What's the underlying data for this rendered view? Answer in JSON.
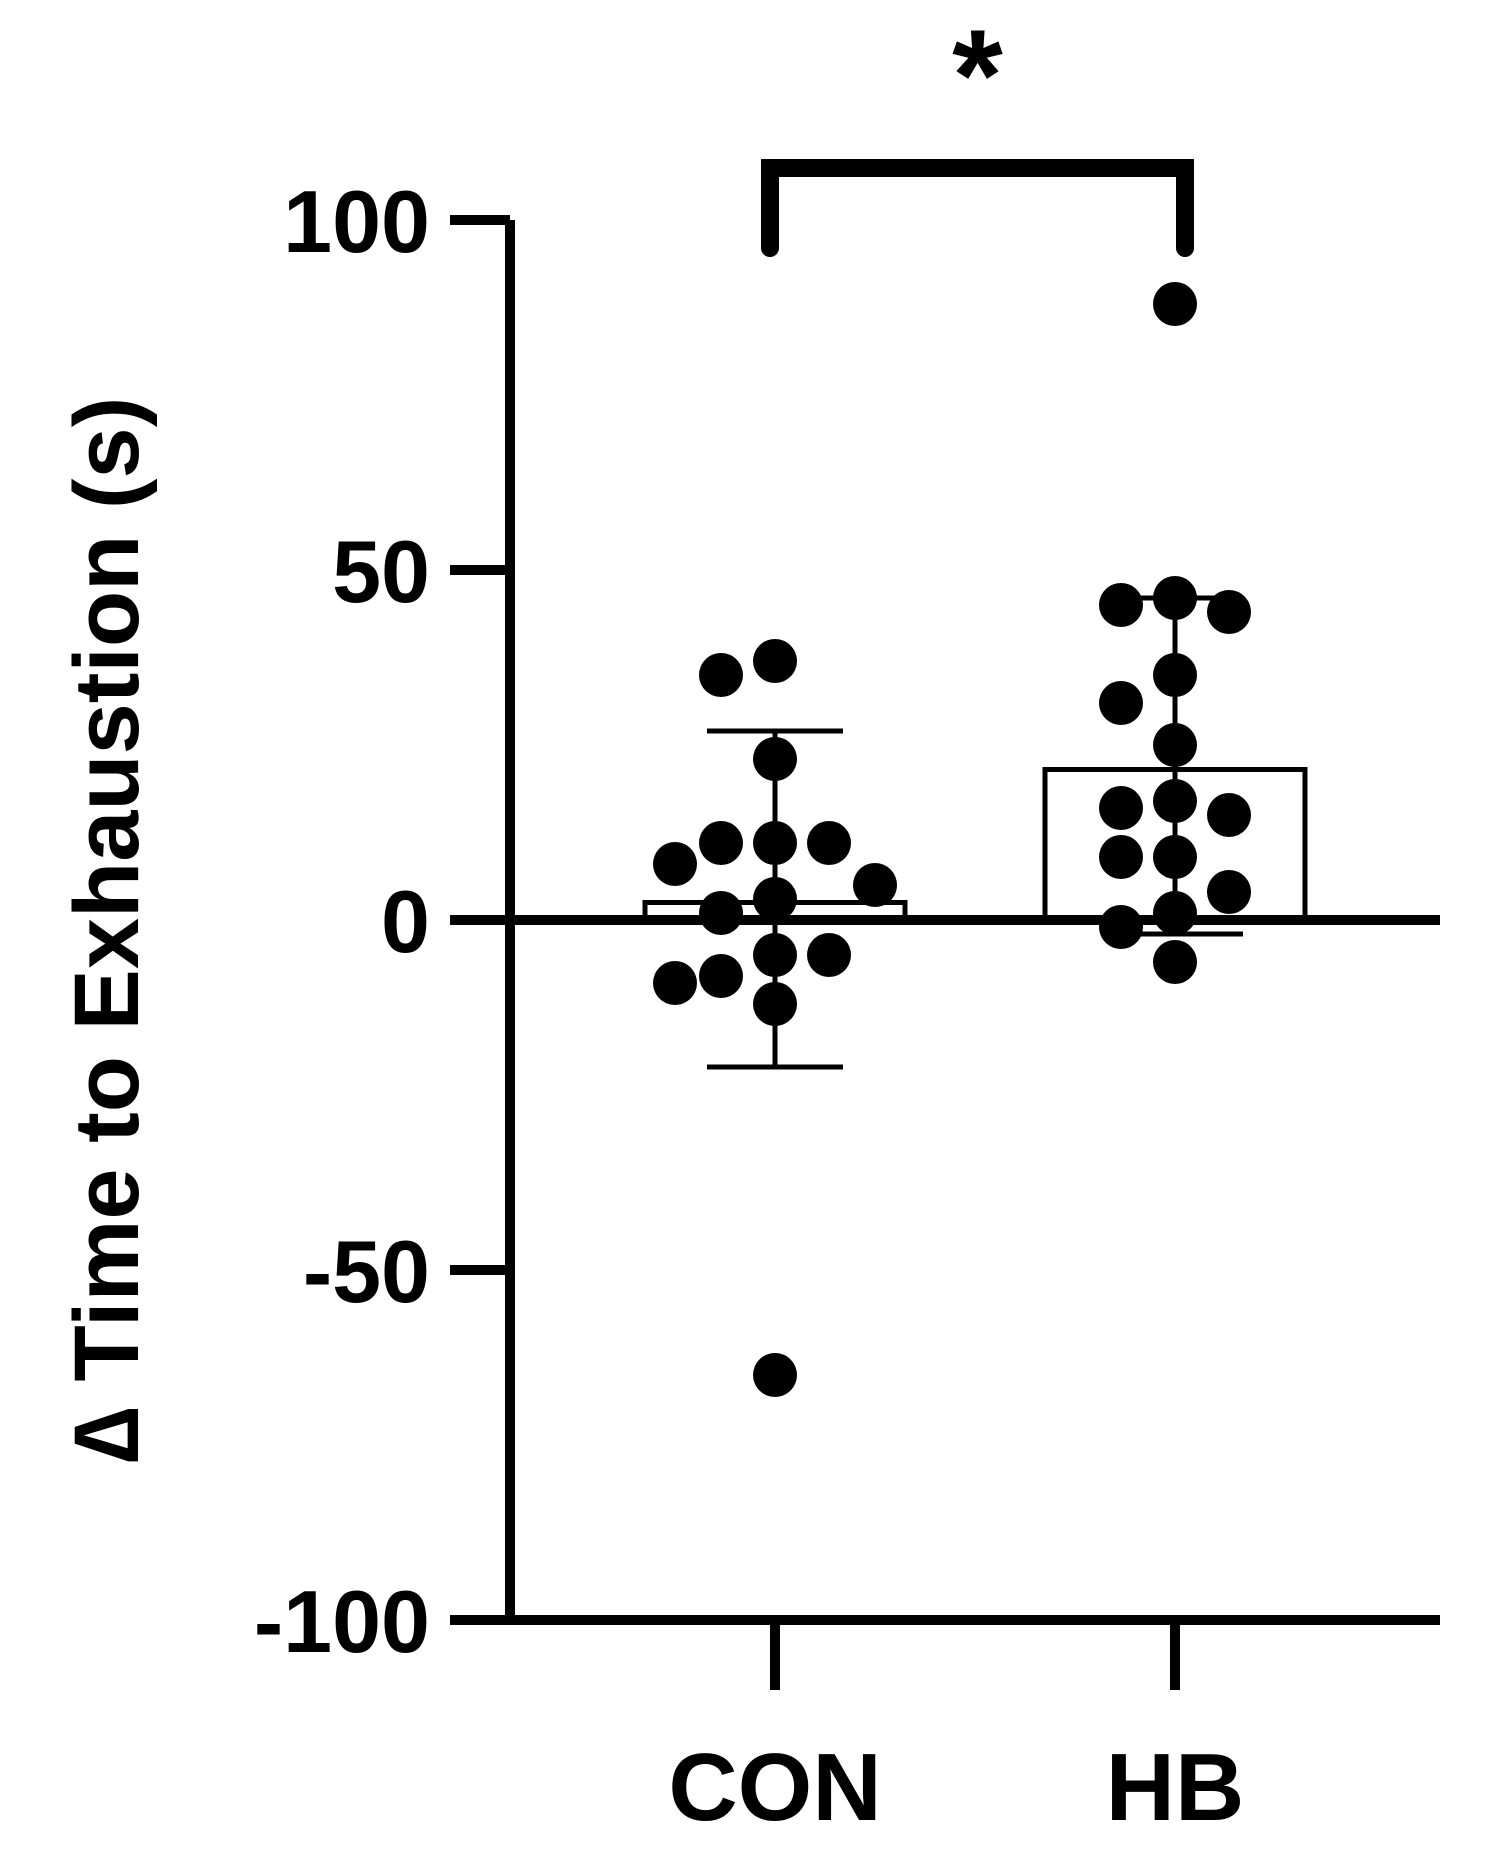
{
  "chart_data": {
    "type": "bar",
    "title": "",
    "xlabel": "",
    "ylabel": "∆ Time to Exhaustion (s)",
    "ylim": [
      -100,
      100
    ],
    "yticks": [
      100,
      50,
      0,
      -50,
      -100
    ],
    "grid": false,
    "legend": "none",
    "categories": [
      "CON",
      "HB"
    ],
    "series": [
      {
        "values": [
          2.5,
          21.5
        ],
        "error_upper": [
          27,
          46
        ],
        "error_lower": [
          -21,
          -2
        ],
        "points": [
          [
            8,
            11,
            11,
            11,
            5,
            35,
            37,
            23,
            3,
            1,
            -5,
            -5,
            -8,
            -9,
            -12,
            -65
          ],
          [
            46,
            45,
            44,
            35,
            31,
            25,
            16,
            17,
            15,
            9,
            9,
            4,
            1,
            -1,
            -6,
            88
          ]
        ]
      }
    ],
    "annotations": [
      {
        "type": "significance",
        "text": "*",
        "between": [
          "CON",
          "HB"
        ]
      }
    ],
    "colors": {
      "ink": "#000000",
      "bar_fill": "#ffffff"
    }
  }
}
